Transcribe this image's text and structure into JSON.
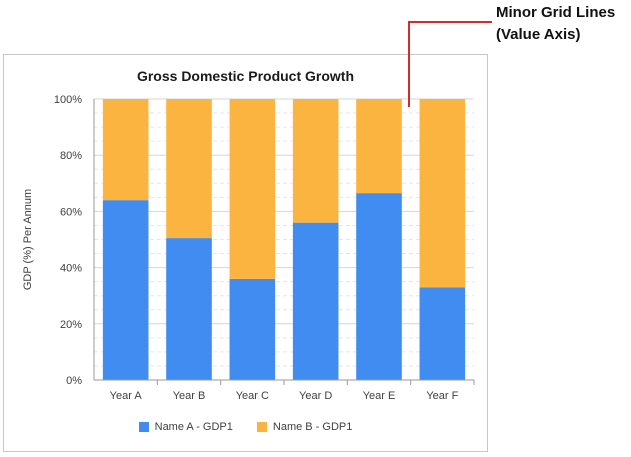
{
  "callout": {
    "line1": "Minor Grid Lines",
    "line2": "(Value Axis)",
    "color": "#d42b2b"
  },
  "chart_data": {
    "type": "bar",
    "stacked": "percent",
    "title": "Gross Domestic Product Growth",
    "xlabel": "",
    "ylabel": "GDP (%) Per Annum",
    "categories": [
      "Year A",
      "Year B",
      "Year C",
      "Year D",
      "Year E",
      "Year F"
    ],
    "series": [
      {
        "name": "Name A - GDP1",
        "color": "#418cf0",
        "values": [
          64,
          50.5,
          36,
          56,
          66.5,
          33
        ]
      },
      {
        "name": "Name B - GDP1",
        "color": "#fcb441",
        "values": [
          36,
          49.5,
          64,
          44,
          33.5,
          67
        ]
      }
    ],
    "ylim": [
      0,
      100
    ],
    "yticks": [
      "0%",
      "20%",
      "40%",
      "60%",
      "80%",
      "100%"
    ],
    "grid": {
      "major": true,
      "minor": true
    },
    "legend_position": "bottom"
  }
}
